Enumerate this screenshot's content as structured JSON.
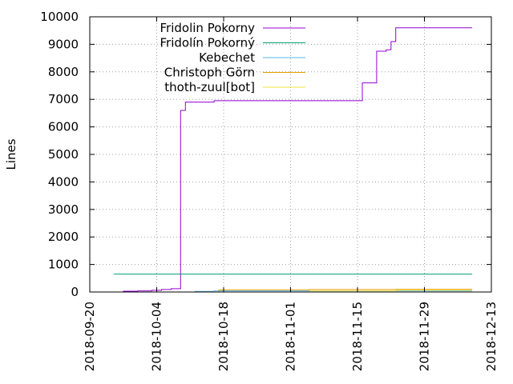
{
  "chart_data": {
    "type": "line",
    "ylabel": "Lines",
    "xlabel": "",
    "ylim": [
      0,
      10000
    ],
    "xlim": [
      "2018-09-20",
      "2018-12-13"
    ],
    "x_ticks": [
      "2018-09-20",
      "2018-10-04",
      "2018-10-18",
      "2018-11-01",
      "2018-11-15",
      "2018-11-29",
      "2018-12-13"
    ],
    "y_ticks": [
      0,
      1000,
      2000,
      3000,
      4000,
      5000,
      6000,
      7000,
      8000,
      9000,
      10000
    ],
    "grid": true,
    "legend_position": "top-center",
    "step": true,
    "series": [
      {
        "name": "Fridolin Pokorny",
        "color": "#9400d3",
        "points": [
          [
            "2018-09-25",
            0
          ],
          [
            "2018-09-27",
            30
          ],
          [
            "2018-09-30",
            40
          ],
          [
            "2018-10-03",
            60
          ],
          [
            "2018-10-05",
            90
          ],
          [
            "2018-10-07",
            120
          ],
          [
            "2018-10-09",
            6250
          ],
          [
            "2018-10-09",
            6600
          ],
          [
            "2018-10-10",
            6900
          ],
          [
            "2018-10-16",
            6950
          ],
          [
            "2018-11-05",
            6950
          ],
          [
            "2018-11-15",
            6950
          ],
          [
            "2018-11-16",
            7600
          ],
          [
            "2018-11-19",
            8750
          ],
          [
            "2018-11-21",
            8800
          ],
          [
            "2018-11-22",
            9100
          ],
          [
            "2018-11-23",
            9600
          ],
          [
            "2018-12-09",
            9600
          ]
        ]
      },
      {
        "name": "Fridolín Pokorný",
        "color": "#009e73",
        "points": [
          [
            "2018-09-25",
            650
          ],
          [
            "2018-12-09",
            650
          ]
        ]
      },
      {
        "name": "Kebechet",
        "color": "#56b4e9",
        "points": [
          [
            "2018-10-09",
            0
          ],
          [
            "2018-10-12",
            20
          ],
          [
            "2018-10-16",
            40
          ],
          [
            "2018-10-18",
            40
          ],
          [
            "2018-12-09",
            40
          ]
        ]
      },
      {
        "name": "Christoph Görn",
        "color": "#e69f00",
        "points": [
          [
            "2018-10-16",
            0
          ],
          [
            "2018-10-17",
            80
          ],
          [
            "2018-11-01",
            80
          ],
          [
            "2018-11-05",
            90
          ],
          [
            "2018-11-20",
            90
          ],
          [
            "2018-11-23",
            100
          ],
          [
            "2018-12-09",
            100
          ]
        ]
      },
      {
        "name": "thoth-zuul[bot]",
        "color": "#f0e442",
        "points": [
          [
            "2018-10-16",
            0
          ],
          [
            "2018-11-05",
            40
          ],
          [
            "2018-11-23",
            60
          ],
          [
            "2018-12-09",
            60
          ]
        ]
      }
    ]
  }
}
